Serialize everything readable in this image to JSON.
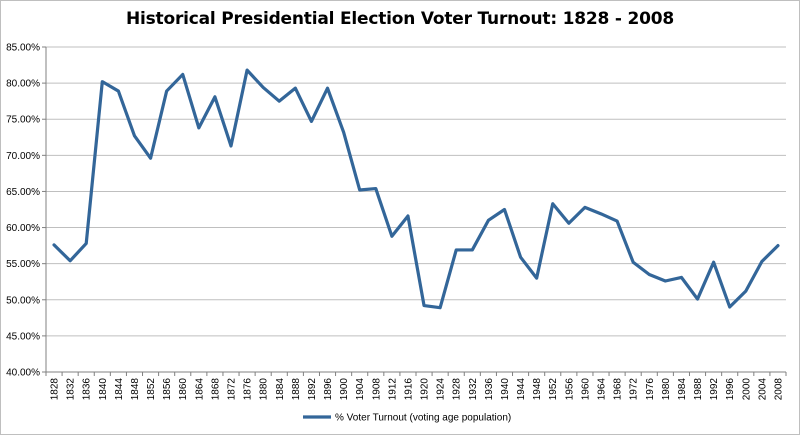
{
  "chart_data": {
    "type": "line",
    "title": "Historical Presidential Election Voter Turnout: 1828 - 2008",
    "xlabel": "",
    "ylabel": "",
    "categories": [
      "1828",
      "1832",
      "1836",
      "1840",
      "1844",
      "1848",
      "1852",
      "1856",
      "1860",
      "1864",
      "1868",
      "1872",
      "1876",
      "1880",
      "1884",
      "1888",
      "1892",
      "1896",
      "1900",
      "1904",
      "1908",
      "1912",
      "1916",
      "1920",
      "1924",
      "1928",
      "1932",
      "1936",
      "1940",
      "1944",
      "1948",
      "1952",
      "1956",
      "1960",
      "1964",
      "1968",
      "1972",
      "1976",
      "1980",
      "1984",
      "1988",
      "1992",
      "1996",
      "2000",
      "2004",
      "2008"
    ],
    "series": [
      {
        "name": "% Voter Turnout (voting age population)",
        "color": "#336699",
        "values": [
          57.6,
          55.4,
          57.8,
          80.2,
          78.9,
          72.7,
          69.6,
          78.9,
          81.2,
          73.8,
          78.1,
          71.3,
          81.8,
          79.4,
          77.5,
          79.3,
          74.7,
          79.3,
          73.2,
          65.2,
          65.4,
          58.8,
          61.6,
          49.2,
          48.9,
          56.9,
          56.9,
          61.0,
          62.5,
          55.9,
          53.0,
          63.3,
          60.6,
          62.8,
          61.9,
          60.9,
          55.2,
          53.5,
          52.6,
          53.1,
          50.1,
          55.2,
          49.0,
          51.2,
          55.3,
          57.5
        ]
      }
    ],
    "y_ticks": [
      "40.00%",
      "45.00%",
      "50.00%",
      "55.00%",
      "60.00%",
      "65.00%",
      "70.00%",
      "75.00%",
      "80.00%",
      "85.00%"
    ],
    "ylim": [
      40,
      85
    ],
    "grid": "horizontal",
    "legend_position": "bottom"
  }
}
